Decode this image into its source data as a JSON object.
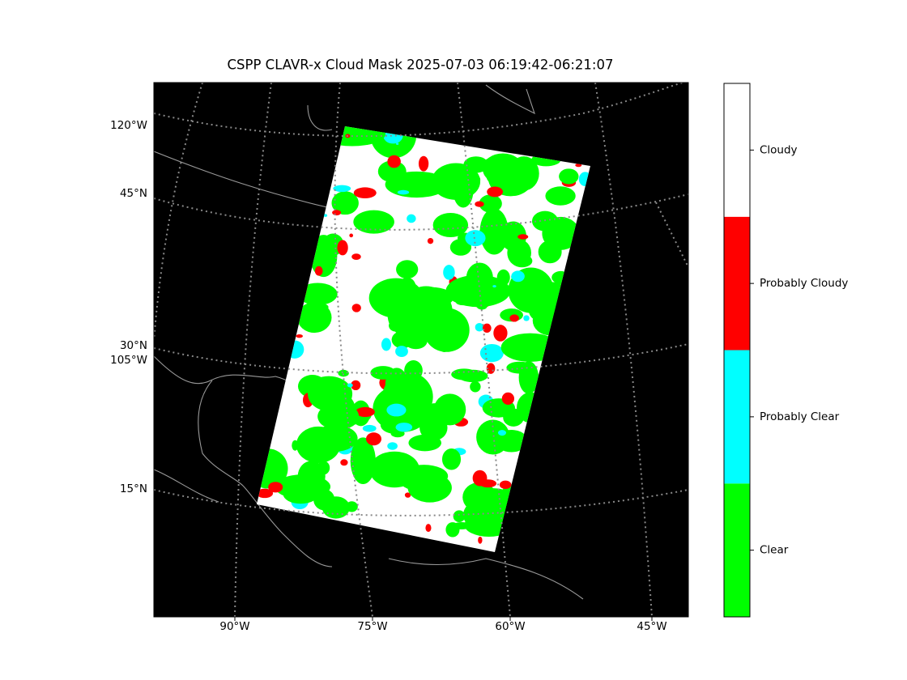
{
  "title": "CSPP CLAVR-x Cloud Mask 2025-07-03 06:19:42-06:21:07",
  "map": {
    "left_labels": [
      "120°W",
      "45°N",
      "30°N",
      "105°W",
      "15°N"
    ],
    "bottom_labels": [
      "90°W",
      "75°W",
      "60°W",
      "45°W"
    ]
  },
  "colorbar": {
    "classes": [
      {
        "label": "Clear",
        "color": "#00ff00"
      },
      {
        "label": "Probably Clear",
        "color": "#00ffff"
      },
      {
        "label": "Probably Cloudy",
        "color": "#ff0000"
      },
      {
        "label": "Cloudy",
        "color": "#ffffff"
      }
    ]
  }
}
